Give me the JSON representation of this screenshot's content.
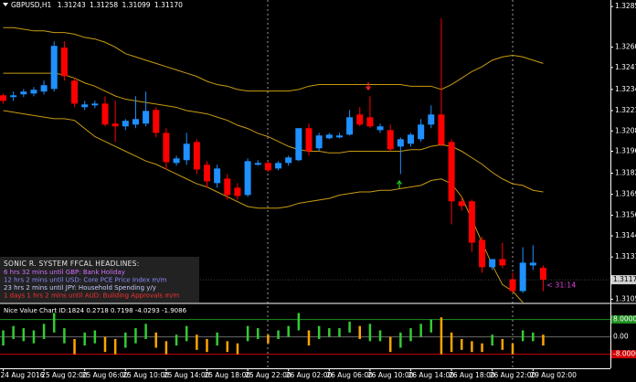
{
  "header": {
    "symbol": "GBPUSD,H1",
    "quote_labels": [
      "1.31243",
      "1.31258",
      "1.31099",
      "1.31170"
    ]
  },
  "news": {
    "heading": "SONIC R. SYSTEM  FFCAL HEADLINES:",
    "items": [
      {
        "text": "6 hrs 32 mins until GBP: Bank Holiday",
        "color": "#d070ff"
      },
      {
        "text": "12 hrs 2 mins until USD: Core PCE Price Index m/m",
        "color": "#8a8aff"
      },
      {
        "text": "23 hrs 2 mins until JPY: Household Spending y/y",
        "color": "#c8c8ff"
      },
      {
        "text": "1 days 1 hrs 2 mins until AUD: Building Approvals m/m",
        "color": "#ff3030"
      }
    ]
  },
  "timer": "< 31:14",
  "chart_data": [
    {
      "type": "candlestick",
      "x": [
        "24 Aug 2016",
        null,
        null,
        null,
        "25 Aug 02:00",
        null,
        null,
        null,
        "25 Aug 06:00",
        null,
        null,
        null,
        "25 Aug 10:00",
        null,
        null,
        null,
        "25 Aug 14:00",
        null,
        null,
        null,
        "25 Aug 18:00",
        null,
        null,
        null,
        "25 Aug 22:00",
        null,
        null,
        null,
        "26 Aug 02:00",
        null,
        null,
        null,
        "26 Aug 06:00",
        null,
        null,
        null,
        "26 Aug 10:00",
        null,
        null,
        null,
        "26 Aug 14:00",
        null,
        null,
        null,
        "26 Aug 18:00",
        null,
        null,
        null,
        "26 Aug 22:00",
        null,
        null,
        null,
        "29 Aug 02:00",
        null
      ],
      "open": [
        1.32304,
        1.32293,
        1.3231,
        1.32315,
        1.32327,
        1.32343,
        1.32597,
        1.32394,
        1.32231,
        1.32242,
        1.32253,
        1.3213,
        1.32113,
        1.32124,
        1.3213,
        1.32214,
        1.32073,
        1.31888,
        1.31905,
        1.32017,
        1.31877,
        1.31764,
        1.31792,
        1.31736,
        1.31691,
        1.31877,
        1.31888,
        1.31854,
        1.31888,
        1.31905,
        1.32102,
        1.31978,
        1.3204,
        1.32045,
        1.32062,
        1.32186,
        1.32169,
        1.3209,
        1.3209,
        1.31989,
        1.32006,
        1.32034,
        1.32124,
        1.32186,
        1.32017,
        1.31652,
        1.31652,
        1.31415,
        1.31247,
        1.31297,
        1.31173,
        1.311,
        1.31258,
        1.31243
      ],
      "high": [
        1.32315,
        1.32327,
        1.32343,
        1.32355,
        1.32394,
        1.32636,
        1.32636,
        1.32411,
        1.3227,
        1.3227,
        1.32298,
        1.3227,
        1.32158,
        1.32298,
        1.32327,
        1.32231,
        1.32102,
        1.31933,
        1.32073,
        1.32034,
        1.31899,
        1.31877,
        1.3182,
        1.31764,
        1.31916,
        1.31905,
        1.31899,
        1.31899,
        1.31933,
        1.32102,
        1.3213,
        1.32073,
        1.32073,
        1.32073,
        1.32214,
        1.32231,
        1.32298,
        1.3213,
        1.32124,
        1.32045,
        1.32073,
        1.32158,
        1.32242,
        1.32777,
        1.32034,
        1.3168,
        1.31663,
        1.31436,
        1.31297,
        1.31398,
        1.31213,
        1.3137,
        1.31382,
        1.31258
      ],
      "low": [
        1.32253,
        1.3227,
        1.32293,
        1.32298,
        1.3231,
        1.32327,
        1.32394,
        1.32231,
        1.32214,
        1.32225,
        1.32113,
        1.32017,
        1.3209,
        1.32102,
        1.32113,
        1.32045,
        1.31848,
        1.31871,
        1.31877,
        1.3182,
        1.31736,
        1.31736,
        1.31663,
        1.31663,
        1.3168,
        1.31871,
        1.31832,
        1.31843,
        1.31871,
        1.31899,
        1.31933,
        1.31961,
        1.32034,
        1.3204,
        1.32057,
        1.32113,
        1.32102,
        1.32073,
        1.31961,
        1.3182,
        1.31989,
        1.32017,
        1.32102,
        1.31989,
        1.31511,
        1.31595,
        1.31342,
        1.31213,
        1.3123,
        1.31241,
        1.31089,
        1.31089,
        1.3123,
        1.31099
      ],
      "close": [
        1.3227,
        1.32304,
        1.32327,
        1.32338,
        1.32366,
        1.32608,
        1.32422,
        1.32253,
        1.32248,
        1.32253,
        1.32124,
        1.32113,
        1.32147,
        1.32158,
        1.32208,
        1.32073,
        1.31893,
        1.31916,
        1.32006,
        1.31848,
        1.31775,
        1.31854,
        1.31691,
        1.31685,
        1.31899,
        1.31888,
        1.31843,
        1.31888,
        1.31922,
        1.32102,
        1.31961,
        1.32057,
        1.32062,
        1.32057,
        1.32169,
        1.32124,
        1.32113,
        1.32113,
        1.31972,
        1.32034,
        1.32062,
        1.32124,
        1.32186,
        1.32,
        1.31652,
        1.31623,
        1.31398,
        1.31247,
        1.31297,
        1.31258,
        1.311,
        1.31275,
        1.31275,
        1.3117
      ],
      "up_color": "#1e90ff",
      "down_color": "#ff0000",
      "band_color": "#c89b12",
      "bands": {
        "upper": [
          1.3272,
          1.3272,
          1.3271,
          1.327,
          1.327,
          1.3269,
          1.3269,
          1.3268,
          1.3266,
          1.3265,
          1.3263,
          1.326,
          1.3256,
          1.3254,
          1.3252,
          1.325,
          1.3248,
          1.3246,
          1.3244,
          1.3242,
          1.3239,
          1.3237,
          1.3236,
          1.3234,
          1.3233,
          1.3233,
          1.3233,
          1.3233,
          1.3233,
          1.3234,
          1.3236,
          1.3237,
          1.3237,
          1.3237,
          1.3237,
          1.3237,
          1.3237,
          1.3237,
          1.3237,
          1.3237,
          1.3236,
          1.3236,
          1.3236,
          1.3234,
          1.3237,
          1.3241,
          1.3245,
          1.3248,
          1.3252,
          1.3254,
          1.3255,
          1.3254,
          1.3252,
          1.325
        ],
        "middle": [
          1.3244,
          1.3244,
          1.3244,
          1.3244,
          1.3244,
          1.3244,
          1.3243,
          1.3241,
          1.3238,
          1.3236,
          1.3233,
          1.323,
          1.3228,
          1.3227,
          1.3226,
          1.3225,
          1.3224,
          1.3223,
          1.3221,
          1.322,
          1.3219,
          1.3217,
          1.3215,
          1.3212,
          1.321,
          1.3207,
          1.3205,
          1.3202,
          1.3199,
          1.3197,
          1.3196,
          1.3196,
          1.3195,
          1.3195,
          1.3196,
          1.3196,
          1.3196,
          1.3196,
          1.3196,
          1.3196,
          1.3197,
          1.3197,
          1.3199,
          1.32,
          1.3199,
          1.3196,
          1.3192,
          1.3188,
          1.3183,
          1.3179,
          1.3176,
          1.3175,
          1.3172,
          1.3171
        ],
        "lower": [
          1.3221,
          1.322,
          1.3219,
          1.3218,
          1.3217,
          1.3216,
          1.3216,
          1.3215,
          1.321,
          1.3205,
          1.3202,
          1.3199,
          1.3196,
          1.3193,
          1.319,
          1.3188,
          1.3185,
          1.3182,
          1.3179,
          1.3176,
          1.3174,
          1.3171,
          1.3168,
          1.3165,
          1.3162,
          1.3161,
          1.3161,
          1.3161,
          1.3162,
          1.3164,
          1.3165,
          1.3166,
          1.3167,
          1.3169,
          1.317,
          1.3171,
          1.3171,
          1.3172,
          1.3172,
          1.3173,
          1.3174,
          1.3175,
          1.3178,
          1.3179,
          1.3176,
          1.3168,
          1.3154,
          1.314,
          1.3126,
          1.3114,
          1.311,
          1.3103,
          1.3098,
          1.3093
        ]
      },
      "ylim": [
        1.3103,
        1.3289
      ],
      "yticks": [
        {
          "value": 1.3285,
          "label": "1.32850"
        },
        {
          "value": 1.326,
          "label": "1.32600"
        },
        {
          "value": 1.32475,
          "label": "1.32475"
        },
        {
          "value": 1.3234,
          "label": "1.32340"
        },
        {
          "value": 1.3221,
          "label": "1.32210"
        },
        {
          "value": 1.32085,
          "label": "1.32085"
        },
        {
          "value": 1.3196,
          "label": "1.31960"
        },
        {
          "value": 1.31825,
          "label": "1.31825"
        },
        {
          "value": 1.31695,
          "label": "1.31695"
        },
        {
          "value": 1.31566,
          "label": "1.31566"
        },
        {
          "value": 1.3144,
          "label": "1.31440"
        },
        {
          "value": 1.3131,
          "label": "1.31310"
        },
        {
          "value": 1.3105,
          "label": "1.31050"
        }
      ],
      "current_price_label": "1.31170"
    },
    {
      "type": "value-chart",
      "title": "Nice Value Chart ID:1824 0.2718 0.7198 -4.0293 -1.9086",
      "high": [
        3,
        5,
        4,
        3,
        6,
        11,
        4,
        -1,
        2,
        3,
        0,
        -1,
        2,
        4,
        6,
        2,
        -2,
        1,
        5,
        1,
        -1,
        2,
        -2,
        -3,
        5,
        4,
        1,
        3,
        5,
        11,
        3,
        5,
        4,
        4,
        7,
        5,
        6,
        3,
        0,
        2,
        4,
        6,
        8,
        9,
        2,
        -1,
        -2,
        -3,
        1,
        -1,
        -3,
        3,
        2,
        1
      ],
      "low": [
        -4,
        -1,
        -2,
        -3,
        -1,
        2,
        -3,
        -8,
        -4,
        -3,
        -7,
        -8,
        -5,
        -3,
        -1,
        -5,
        -8,
        -4,
        -2,
        -6,
        -7,
        -4,
        -7,
        -8,
        -2,
        -1,
        -3,
        -1,
        0,
        3,
        -4,
        -1,
        0,
        0,
        2,
        -1,
        -2,
        -2,
        -7,
        -5,
        -2,
        0,
        2,
        -8,
        -7,
        -6,
        -7,
        -7,
        -4,
        -6,
        -8,
        -2,
        -2,
        -4
      ],
      "colors": [
        "#32cd32",
        "#32cd32",
        "#32cd32",
        "#32cd32",
        "#32cd32",
        "#32cd32",
        "#32cd32",
        "#ffa500",
        "#32cd32",
        "#32cd32",
        "#ffa500",
        "#ffa500",
        "#32cd32",
        "#32cd32",
        "#32cd32",
        "#ffa500",
        "#ffa500",
        "#32cd32",
        "#32cd32",
        "#ffa500",
        "#ffa500",
        "#32cd32",
        "#ffa500",
        "#ffa500",
        "#32cd32",
        "#32cd32",
        "#ffa500",
        "#32cd32",
        "#32cd32",
        "#32cd32",
        "#ffa500",
        "#32cd32",
        "#32cd32",
        "#32cd32",
        "#32cd32",
        "#ffa500",
        "#32cd32",
        "#32cd32",
        "#ffa500",
        "#32cd32",
        "#32cd32",
        "#32cd32",
        "#32cd32",
        "#ffa500",
        "#ffa500",
        "#ffa500",
        "#ffa500",
        "#ffa500",
        "#32cd32",
        "#ffa500",
        "#ffa500",
        "#32cd32",
        "#32cd32",
        "#ffa500"
      ],
      "ylim": [
        -14.5,
        15
      ],
      "yticks": [
        {
          "value": 8,
          "label": "8.0000"
        },
        {
          "value": 0,
          "label": "0.00"
        },
        {
          "value": -8,
          "label": "-8.0000"
        }
      ],
      "tick_colors": [
        "#1f8f1f",
        "#6a6a6a",
        "#d00000"
      ]
    }
  ]
}
